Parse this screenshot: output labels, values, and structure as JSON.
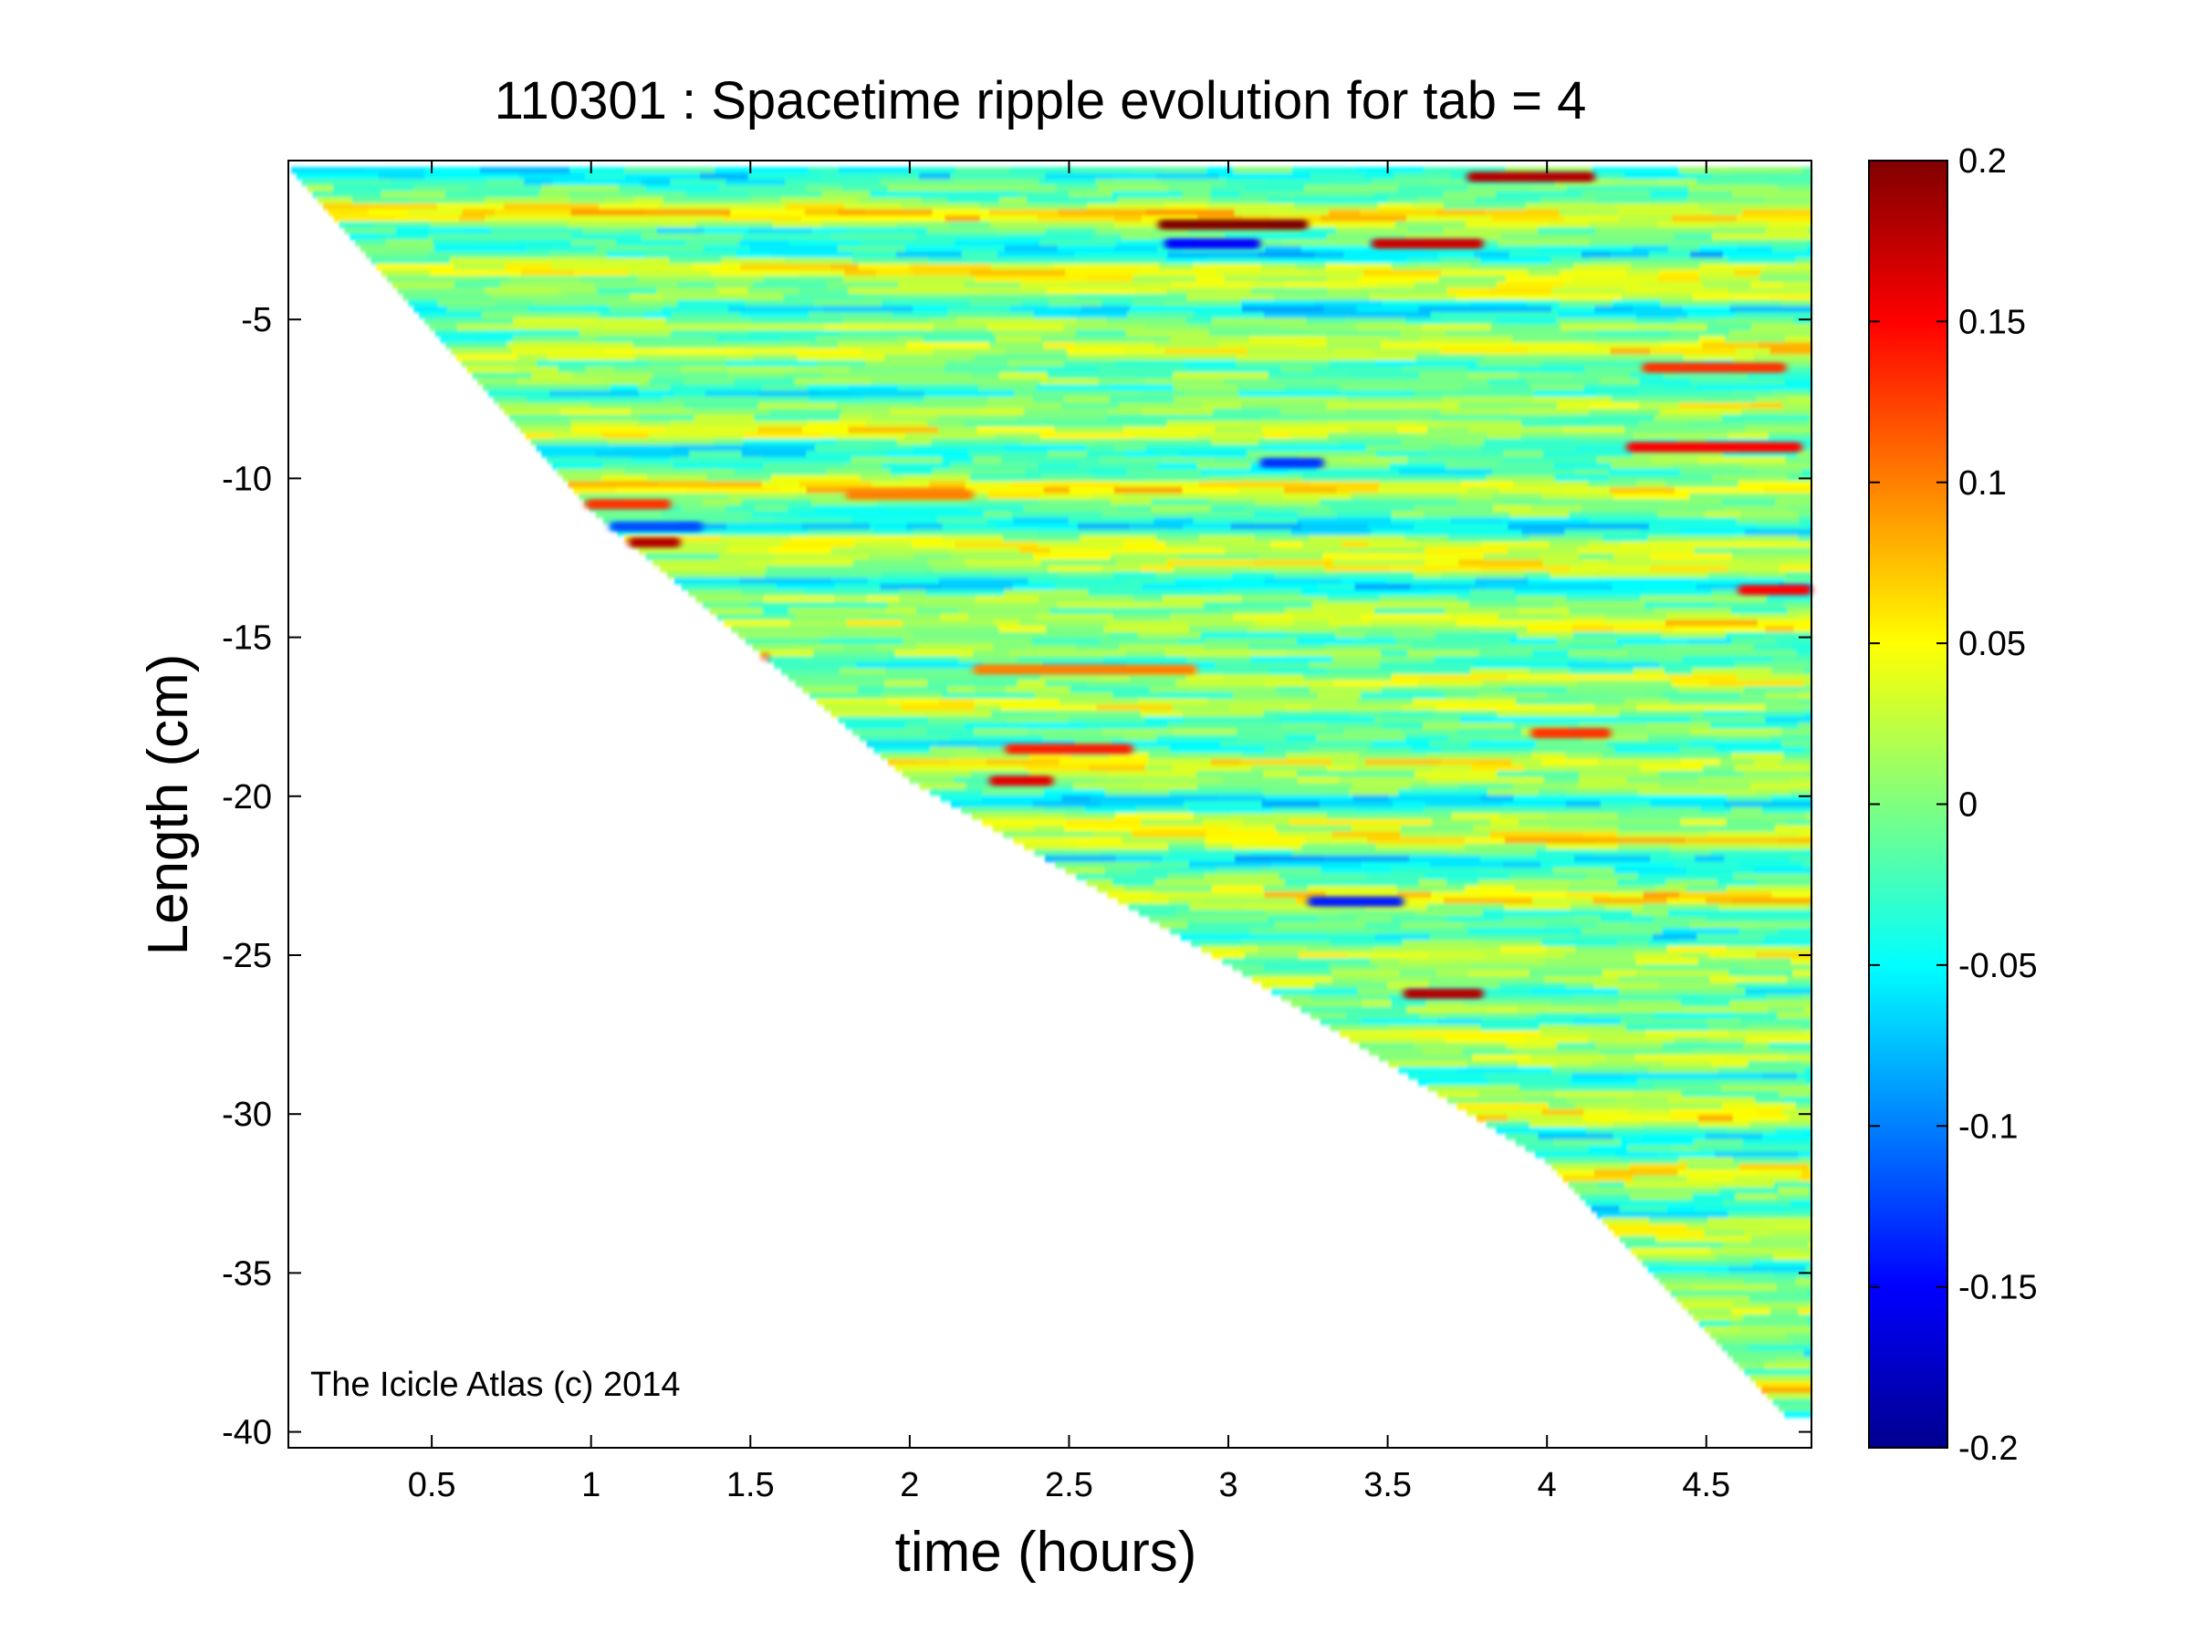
{
  "chart_data": {
    "type": "heatmap",
    "title": "110301 : Spacetime ripple evolution for tab = 4",
    "xlabel": "time (hours)",
    "ylabel": "Length (cm)",
    "xlim": [
      0.05,
      4.83
    ],
    "ylim": [
      -40.5,
      0
    ],
    "xticks": [
      0.5,
      1,
      1.5,
      2,
      2.5,
      3,
      3.5,
      4,
      4.5
    ],
    "yticks": [
      -5,
      -10,
      -15,
      -20,
      -25,
      -30,
      -35,
      -40
    ],
    "colorbar": {
      "min": -0.2,
      "max": 0.2,
      "ticks": [
        0.2,
        0.15,
        0.1,
        0.05,
        0,
        -0.05,
        -0.1,
        -0.15,
        -0.2
      ],
      "colormap": "jet"
    },
    "data_region": {
      "growth_front": [
        [
          0.05,
          -0.2
        ],
        [
          1.0,
          -11.0
        ],
        [
          2.0,
          -19.5
        ],
        [
          3.0,
          -25.3
        ],
        [
          4.0,
          -31.5
        ],
        [
          4.75,
          -39.5
        ]
      ]
    },
    "features": [
      {
        "t0": 1.05,
        "t1": 1.28,
        "y": -12.0,
        "value": 0.18
      },
      {
        "t0": 0.95,
        "t1": 1.25,
        "y": -10.8,
        "value": 0.13
      },
      {
        "t0": 1.05,
        "t1": 1.35,
        "y": -11.5,
        "value": -0.12
      },
      {
        "t0": 2.78,
        "t1": 3.25,
        "y": -2.0,
        "value": 0.2
      },
      {
        "t0": 2.8,
        "t1": 3.1,
        "y": -2.6,
        "value": -0.15
      },
      {
        "t0": 3.45,
        "t1": 3.8,
        "y": -2.6,
        "value": 0.17
      },
      {
        "t0": 3.75,
        "t1": 4.15,
        "y": -0.5,
        "value": 0.18
      },
      {
        "t0": 4.25,
        "t1": 4.8,
        "y": -9.0,
        "value": 0.15
      },
      {
        "t0": 4.3,
        "t1": 4.75,
        "y": -6.5,
        "value": 0.13
      },
      {
        "t0": 2.3,
        "t1": 2.7,
        "y": -18.5,
        "value": 0.14
      },
      {
        "t0": 2.25,
        "t1": 2.45,
        "y": -19.5,
        "value": 0.16
      },
      {
        "t0": 3.55,
        "t1": 3.8,
        "y": -26.2,
        "value": 0.18
      },
      {
        "t0": 3.25,
        "t1": 3.55,
        "y": -23.3,
        "value": -0.14
      },
      {
        "t0": 3.95,
        "t1": 4.2,
        "y": -18.0,
        "value": 0.13
      },
      {
        "t0": 2.2,
        "t1": 2.9,
        "y": -16.0,
        "value": 0.1
      },
      {
        "t0": 1.8,
        "t1": 2.2,
        "y": -10.5,
        "value": 0.1
      },
      {
        "t0": 4.6,
        "t1": 4.83,
        "y": -13.5,
        "value": 0.15
      },
      {
        "t0": 3.1,
        "t1": 3.3,
        "y": -9.5,
        "value": -0.13
      },
      {
        "t0": 1.48,
        "t1": 1.55,
        "y": -15.6,
        "value": 0.16
      }
    ],
    "annotation": "The Icicle Atlas (c) 2014"
  }
}
